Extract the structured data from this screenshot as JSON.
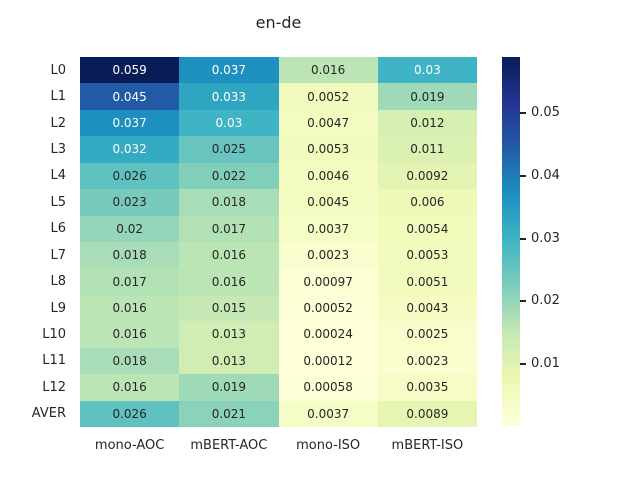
{
  "figure": {
    "title": "en-de",
    "background": "#ffffff"
  },
  "chart_data": {
    "type": "heatmap",
    "title": "en-de",
    "rows": [
      "L0",
      "L1",
      "L2",
      "L3",
      "L4",
      "L5",
      "L6",
      "L7",
      "L8",
      "L9",
      "L10",
      "L11",
      "L12",
      "AVER"
    ],
    "columns": [
      "mono-AOC",
      "mBERT-AOC",
      "mono-ISO",
      "mBERT-ISO"
    ],
    "values": [
      [
        0.059,
        0.037,
        0.016,
        0.03
      ],
      [
        0.045,
        0.033,
        0.0052,
        0.019
      ],
      [
        0.037,
        0.03,
        0.0047,
        0.012
      ],
      [
        0.032,
        0.025,
        0.0053,
        0.011
      ],
      [
        0.026,
        0.022,
        0.0046,
        0.0092
      ],
      [
        0.023,
        0.018,
        0.0045,
        0.006
      ],
      [
        0.02,
        0.017,
        0.0037,
        0.0054
      ],
      [
        0.018,
        0.016,
        0.0023,
        0.0053
      ],
      [
        0.017,
        0.016,
        0.00097,
        0.0051
      ],
      [
        0.016,
        0.015,
        0.00052,
        0.0043
      ],
      [
        0.016,
        0.013,
        0.00024,
        0.0025
      ],
      [
        0.018,
        0.013,
        0.00012,
        0.0023
      ],
      [
        0.016,
        0.019,
        0.00058,
        0.0035
      ],
      [
        0.026,
        0.021,
        0.0037,
        0.0089
      ]
    ],
    "annotations_shown": true,
    "vmin": 0.00012,
    "vmax": 0.059,
    "colormap": "YlGnBu",
    "colormap_stops": [
      [
        0.0,
        "#ffffd9"
      ],
      [
        0.125,
        "#edf8b1"
      ],
      [
        0.25,
        "#c7e9b4"
      ],
      [
        0.375,
        "#7fcdbb"
      ],
      [
        0.5,
        "#41b6c4"
      ],
      [
        0.625,
        "#1d91c0"
      ],
      [
        0.75,
        "#225ea8"
      ],
      [
        0.875,
        "#253494"
      ],
      [
        1.0,
        "#081d58"
      ]
    ],
    "colorbar": {
      "position": "right",
      "ticks": [
        {
          "value": 0.01,
          "label": "0.01"
        },
        {
          "value": 0.02,
          "label": "0.02"
        },
        {
          "value": 0.03,
          "label": "0.03"
        },
        {
          "value": 0.04,
          "label": "0.04"
        },
        {
          "value": 0.05,
          "label": "0.05"
        }
      ]
    },
    "text_colors": {
      "dark": "#262626",
      "light": "#ffffff"
    },
    "grid": false,
    "axes_frame": false
  }
}
